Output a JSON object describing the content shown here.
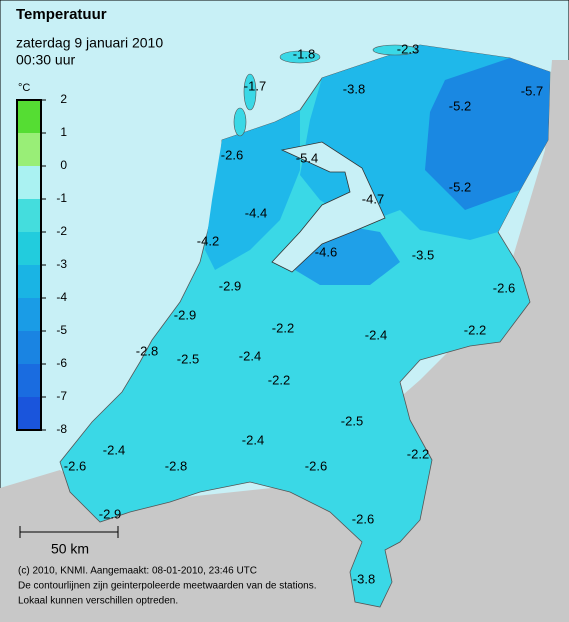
{
  "header": {
    "title": "Temperatuur",
    "date": "zaterdag 9 januari 2010",
    "time": "00:30 uur"
  },
  "legend": {
    "unit": "°C",
    "ticks": [
      2,
      1,
      0,
      -1,
      -2,
      -3,
      -4,
      -5,
      -6,
      -7,
      -8
    ],
    "colors": [
      "#55dd33",
      "#99ee77",
      "#aaf2f2",
      "#44dddd",
      "#22ccdd",
      "#1ab4e4",
      "#1a9ce6",
      "#1a84e2",
      "#1a6ce0",
      "#1a55dc"
    ]
  },
  "stations": [
    {
      "value": -2.3
    },
    {
      "value": -1.8
    },
    {
      "value": -1.7
    },
    {
      "value": -3.8
    },
    {
      "value": -5.2
    },
    {
      "value": -5.7
    },
    {
      "value": -2.6
    },
    {
      "value": -5.4
    },
    {
      "value": -4.7
    },
    {
      "value": -5.2
    },
    {
      "value": -4.4
    },
    {
      "value": -4.2
    },
    {
      "value": -4.6
    },
    {
      "value": -3.5
    },
    {
      "value": -2.9
    },
    {
      "value": -2.6
    },
    {
      "value": -2.9
    },
    {
      "value": -2.2
    },
    {
      "value": -2.4
    },
    {
      "value": -2.2
    },
    {
      "value": -2.8
    },
    {
      "value": -2.5
    },
    {
      "value": -2.4
    },
    {
      "value": -2.2
    },
    {
      "value": -2.5
    },
    {
      "value": -2.4
    },
    {
      "value": -2.4
    },
    {
      "value": -2.2
    },
    {
      "value": -2.6
    },
    {
      "value": -2.8
    },
    {
      "value": -2.6
    },
    {
      "value": -2.9
    },
    {
      "value": -2.6
    },
    {
      "value": -3.8
    }
  ],
  "scale_bar": "50 km",
  "footer": [
    "(c) 2010, KNMI. Aangemaakt: 08-01-2010, 23:46 UTC",
    "De contourlijnen zijn geinterpoleerde meetwaarden van de stations.",
    "Lokaal kunnen verschillen optreden."
  ]
}
